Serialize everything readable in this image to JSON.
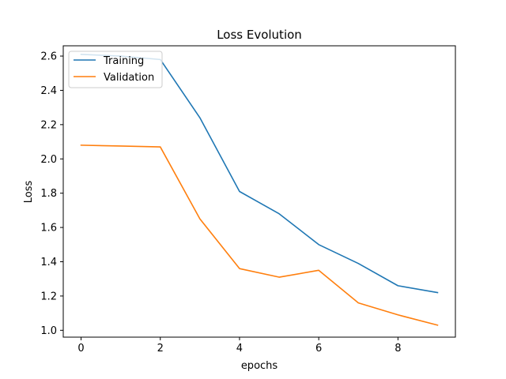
{
  "chart_data": {
    "type": "line",
    "title": "Loss Evolution",
    "xlabel": "epochs",
    "ylabel": "Loss",
    "xlim": [
      -0.45,
      9.45
    ],
    "ylim": [
      0.96,
      2.66
    ],
    "xticks": [
      "0",
      "2",
      "4",
      "6",
      "8"
    ],
    "yticks": [
      "1.0",
      "1.2",
      "1.4",
      "1.6",
      "1.8",
      "2.0",
      "2.2",
      "2.4",
      "2.6"
    ],
    "grid": false,
    "legend_position": "top-left",
    "x": [
      0,
      1,
      2,
      3,
      4,
      5,
      6,
      7,
      8,
      9
    ],
    "series": [
      {
        "name": "Training",
        "color": "#1f77b4",
        "values": [
          2.61,
          2.6,
          2.58,
          2.24,
          1.81,
          1.68,
          1.5,
          1.39,
          1.26,
          1.22
        ]
      },
      {
        "name": "Validation",
        "color": "#ff7f0e",
        "values": [
          2.08,
          2.075,
          2.07,
          1.65,
          1.36,
          1.31,
          1.35,
          1.16,
          1.09,
          1.03
        ]
      }
    ]
  }
}
